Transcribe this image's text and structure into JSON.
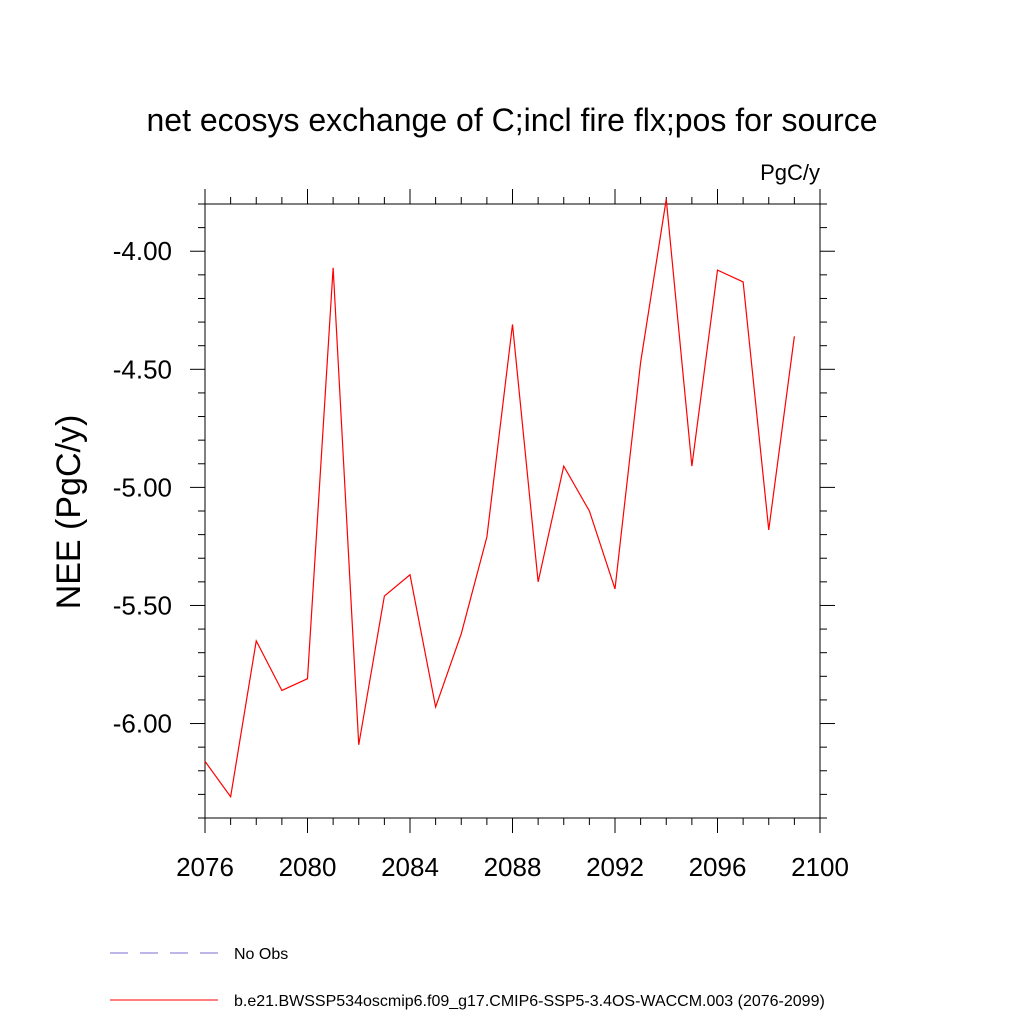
{
  "chart_data": {
    "type": "line",
    "title": "net ecosys exchange of C;incl fire flx;pos for source",
    "units": "PgC/y",
    "ylabel": "NEE  (PgC/y)",
    "xlabel": "",
    "xlim": [
      2076,
      2100
    ],
    "ylim": [
      -6.4,
      -3.8
    ],
    "x_ticks": [
      2076,
      2080,
      2084,
      2088,
      2092,
      2096,
      2100
    ],
    "x_tick_labels": [
      "2076",
      "2080",
      "2084",
      "2088",
      "2092",
      "2096",
      "2100"
    ],
    "y_ticks": [
      -6.0,
      -5.5,
      -5.0,
      -4.5,
      -4.0
    ],
    "y_tick_labels": [
      "-6.00",
      "-5.50",
      "-5.00",
      "-4.50",
      "-4.00"
    ],
    "series": [
      {
        "name": "b.e21.BWSSP534oscmip6.f09_g17.CMIP6-SSP5-3.4OS-WACCM.003 (2076-2099)",
        "color": "#ff0000",
        "x": [
          2076,
          2077,
          2078,
          2079,
          2080,
          2081,
          2082,
          2083,
          2084,
          2085,
          2086,
          2087,
          2088,
          2089,
          2090,
          2091,
          2092,
          2093,
          2094,
          2095,
          2096,
          2097,
          2098,
          2099
        ],
        "values": [
          -6.16,
          -6.31,
          -5.65,
          -5.86,
          -5.81,
          -4.07,
          -6.09,
          -5.46,
          -5.37,
          -5.93,
          -5.62,
          -5.21,
          -4.31,
          -5.4,
          -4.91,
          -5.1,
          -5.43,
          -4.47,
          -3.78,
          -4.91,
          -4.08,
          -4.13,
          -5.18,
          -4.36
        ]
      }
    ],
    "legend": [
      {
        "label": "No Obs",
        "color": "#7a6fd0",
        "style": "dashed"
      },
      {
        "label": "b.e21.BWSSP534oscmip6.f09_g17.CMIP6-SSP5-3.4OS-WACCM.003 (2076-2099)",
        "color": "#ff0000",
        "style": "solid"
      }
    ]
  }
}
